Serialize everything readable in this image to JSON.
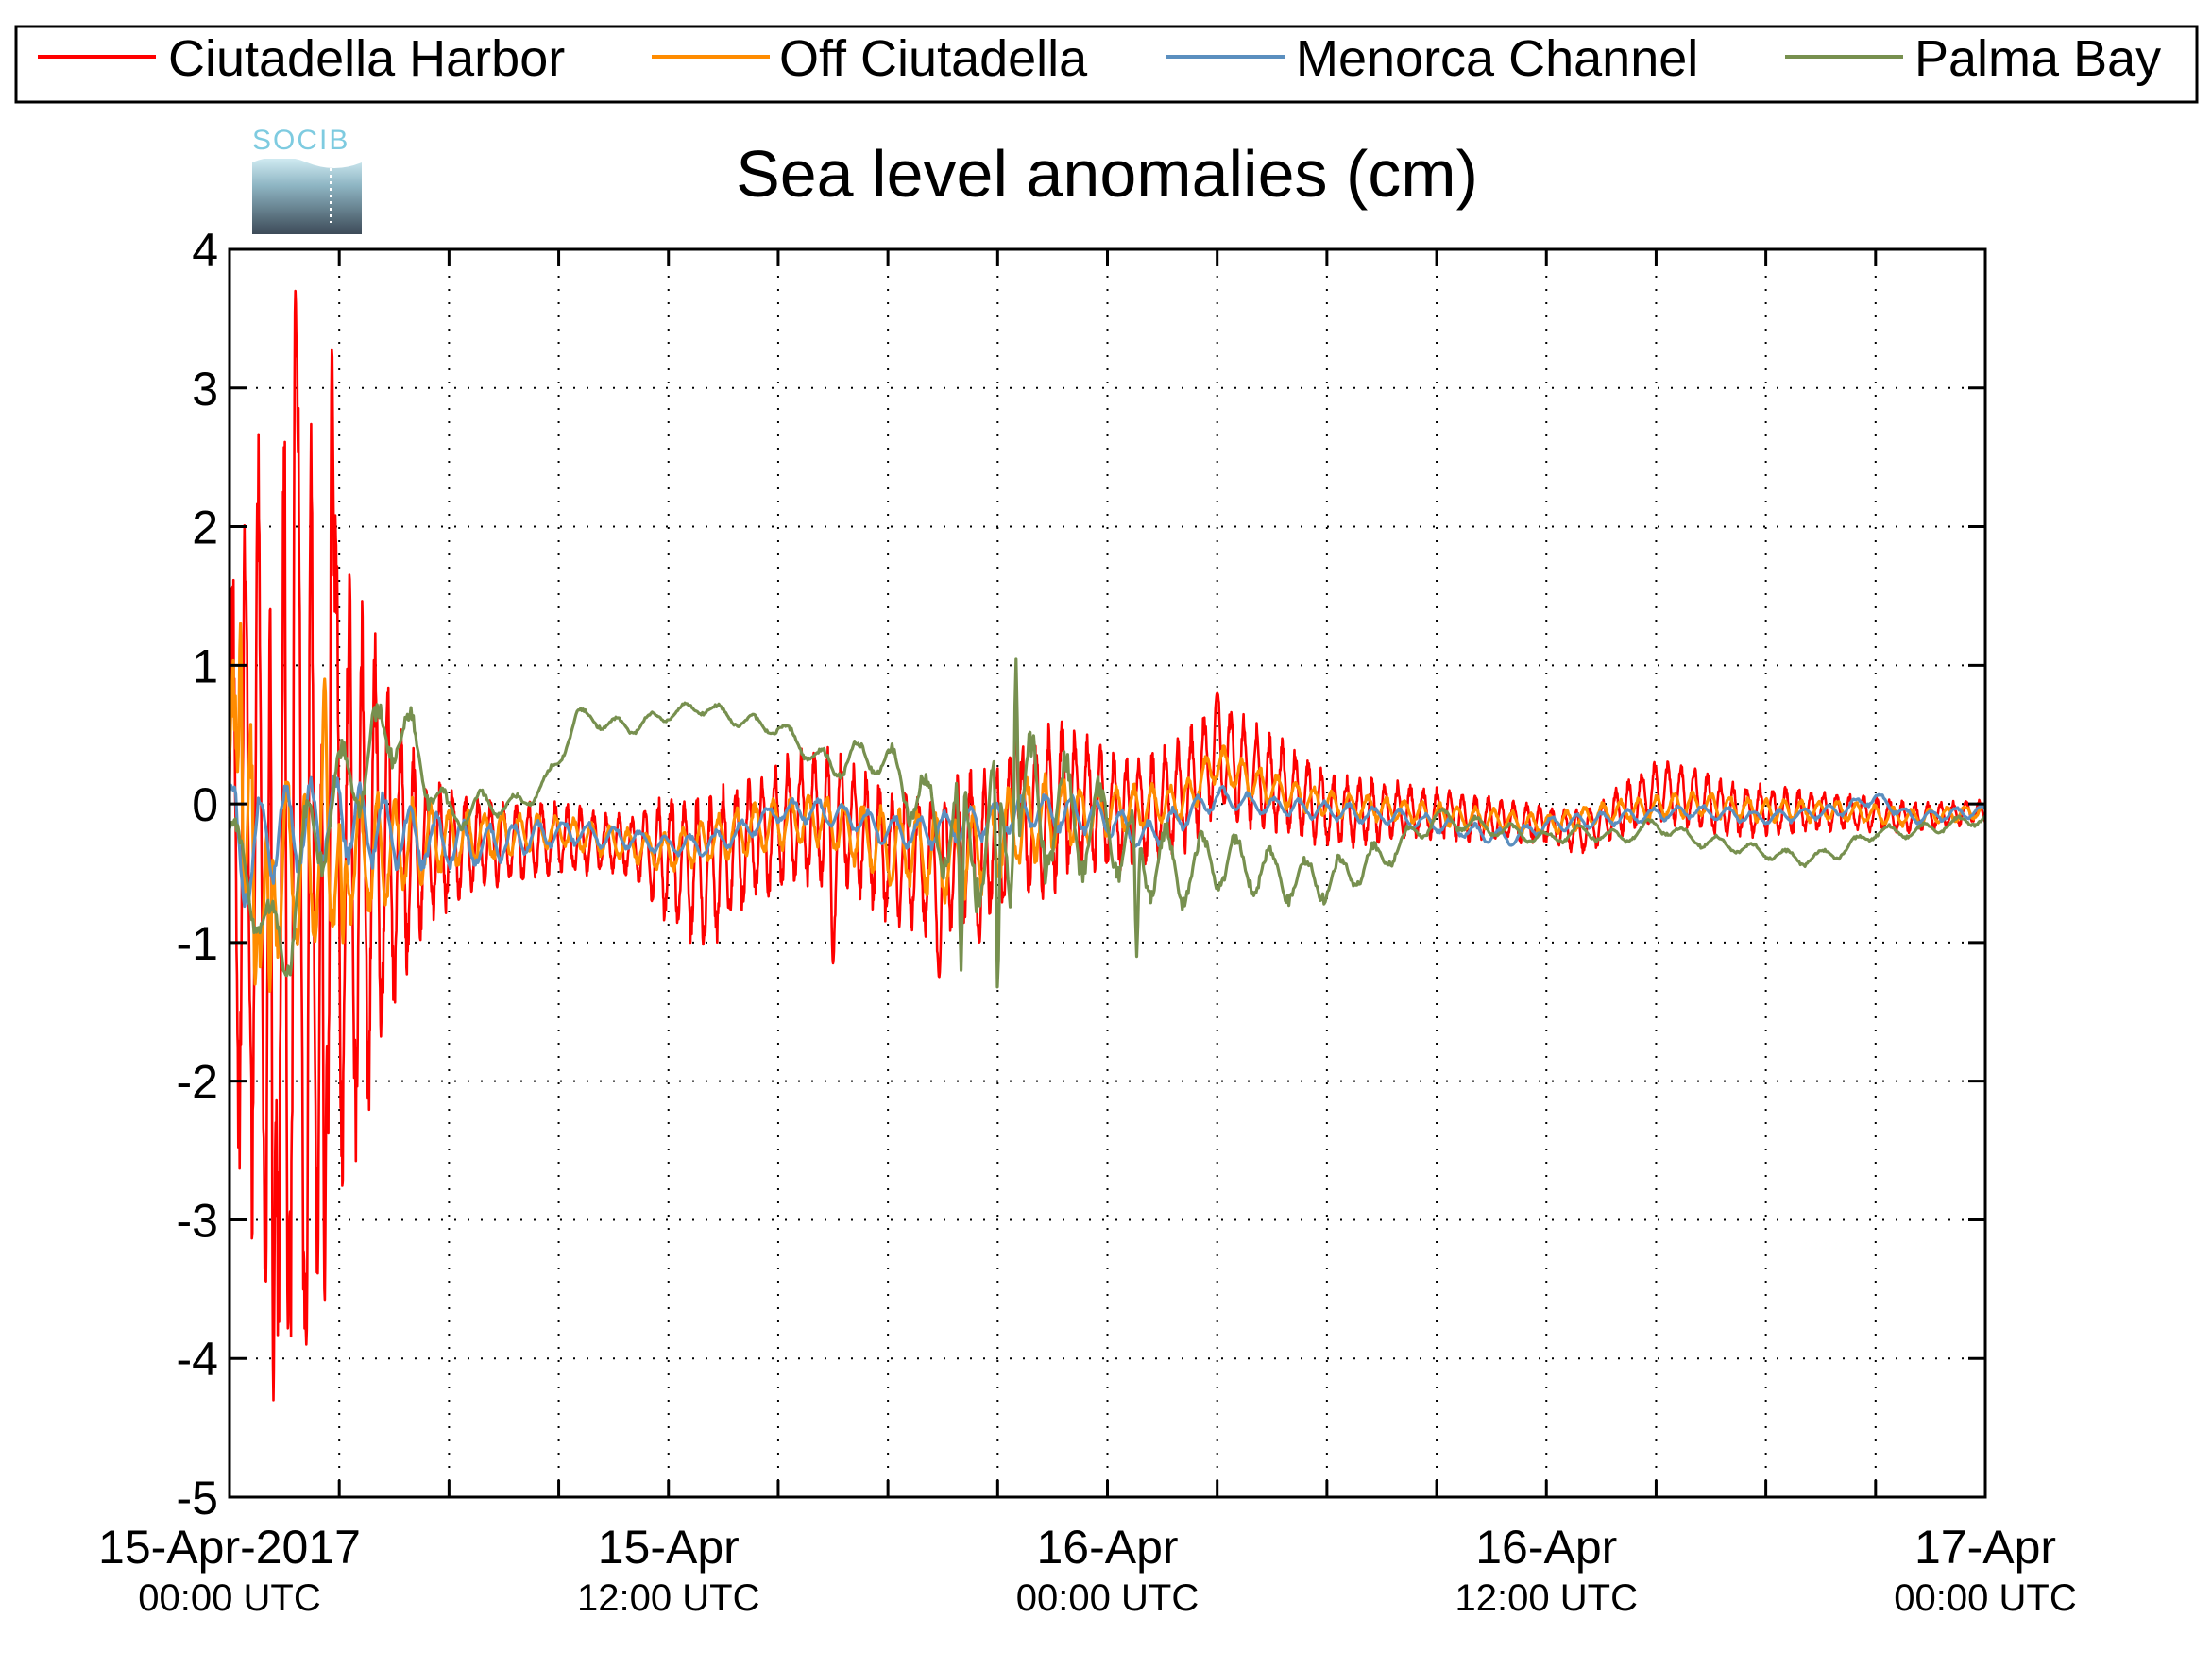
{
  "chart_data": {
    "type": "line",
    "title": "Sea level anomalies (cm)",
    "logo_text": "SOCIB",
    "xlabel": "",
    "ylabel": "",
    "x_unit": "hours since 15-Apr-2017 00:00 UTC",
    "xlim": [
      0,
      48
    ],
    "ylim": [
      -5,
      4
    ],
    "y_ticks": [
      4,
      3,
      2,
      1,
      0,
      -1,
      -2,
      -3,
      -4,
      -5
    ],
    "x_ticks_minor": [
      3,
      6,
      9,
      12,
      15,
      18,
      21,
      24,
      27,
      30,
      33,
      36,
      39,
      42,
      45,
      48
    ],
    "x_tick_labels": [
      {
        "x": 0,
        "line1": "15-Apr-2017",
        "line2": "00:00 UTC"
      },
      {
        "x": 12,
        "line1": "15-Apr",
        "line2": "12:00 UTC"
      },
      {
        "x": 24,
        "line1": "16-Apr",
        "line2": "00:00 UTC"
      },
      {
        "x": 36,
        "line1": "16-Apr",
        "line2": "12:00 UTC"
      },
      {
        "x": 48,
        "line1": "17-Apr",
        "line2": "00:00 UTC"
      }
    ],
    "grid": true,
    "legend_position": "top",
    "series": [
      {
        "name": "Ciutadella Harbor",
        "color": "#ff0000",
        "envelope": [
          [
            0,
            2.1
          ],
          [
            0.4,
            2.6
          ],
          [
            0.9,
            3.3
          ],
          [
            1.5,
            4.0
          ],
          [
            2.3,
            3.5
          ],
          [
            3.0,
            2.6
          ],
          [
            3.8,
            1.9
          ],
          [
            4.6,
            1.1
          ],
          [
            5.4,
            0.55
          ],
          [
            7,
            0.35
          ],
          [
            9,
            0.28
          ],
          [
            11,
            0.22
          ],
          [
            12,
            0.55
          ],
          [
            13,
            0.6
          ],
          [
            14.5,
            0.5
          ],
          [
            16,
            0.55
          ],
          [
            17,
            0.5
          ],
          [
            19,
            0.55
          ],
          [
            21,
            0.6
          ],
          [
            22.5,
            0.65
          ],
          [
            24,
            0.45
          ],
          [
            26,
            0.45
          ],
          [
            27,
            0.45
          ],
          [
            30,
            0.3
          ],
          [
            32,
            0.22
          ],
          [
            34,
            0.18
          ],
          [
            36,
            0.15
          ],
          [
            38,
            0.2
          ],
          [
            40,
            0.25
          ],
          [
            42,
            0.2
          ],
          [
            44,
            0.15
          ],
          [
            46,
            0.12
          ],
          [
            48,
            0.08
          ]
        ],
        "baseline": [
          [
            0,
            -0.3
          ],
          [
            3,
            -0.5
          ],
          [
            6,
            -0.3
          ],
          [
            9,
            -0.25
          ],
          [
            11,
            -0.3
          ],
          [
            12,
            -0.4
          ],
          [
            13,
            -0.5
          ],
          [
            14,
            -0.3
          ],
          [
            15,
            -0.15
          ],
          [
            16,
            -0.1
          ],
          [
            17,
            -0.15
          ],
          [
            18,
            -0.35
          ],
          [
            19,
            -0.45
          ],
          [
            20,
            -0.35
          ],
          [
            21,
            -0.25
          ],
          [
            22,
            -0.1
          ],
          [
            23,
            0.05
          ],
          [
            24,
            -0.05
          ],
          [
            25,
            -0.05
          ],
          [
            26,
            0.05
          ],
          [
            27,
            0.35
          ],
          [
            28,
            0.2
          ],
          [
            29,
            0.1
          ],
          [
            30,
            -0.05
          ],
          [
            32,
            -0.05
          ],
          [
            34,
            -0.1
          ],
          [
            36,
            -0.15
          ],
          [
            37,
            -0.2
          ],
          [
            38,
            -0.05
          ],
          [
            39,
            0.1
          ],
          [
            40,
            0.05
          ],
          [
            41,
            -0.05
          ],
          [
            42,
            -0.05
          ],
          [
            44,
            -0.05
          ],
          [
            46,
            -0.1
          ],
          [
            48,
            -0.05
          ]
        ],
        "period_h": 0.36,
        "samples": 4000,
        "peaks": [
          [
            1.8,
            3.7
          ],
          [
            2.8,
            3.3
          ],
          [
            1.2,
            -4.3
          ],
          [
            1.6,
            -3.8
          ],
          [
            2.1,
            -3.9
          ],
          [
            2.6,
            -3.6
          ],
          [
            27.0,
            0.8
          ],
          [
            16.5,
            -1.15
          ],
          [
            19.4,
            -1.25
          ],
          [
            20.5,
            -1.0
          ],
          [
            21.5,
            0.7
          ]
        ]
      },
      {
        "name": "Off Ciutadella",
        "color": "#ff8c00",
        "envelope": [
          [
            0,
            1.2
          ],
          [
            0.5,
            1.0
          ],
          [
            1.2,
            0.8
          ],
          [
            2.5,
            0.6
          ],
          [
            4,
            0.45
          ],
          [
            6,
            0.25
          ],
          [
            9,
            0.12
          ],
          [
            12,
            0.15
          ],
          [
            14,
            0.2
          ],
          [
            16,
            0.2
          ],
          [
            18,
            0.3
          ],
          [
            20,
            0.35
          ],
          [
            22,
            0.35
          ],
          [
            24,
            0.2
          ],
          [
            26,
            0.15
          ],
          [
            28,
            0.15
          ],
          [
            30,
            0.1
          ],
          [
            36,
            0.08
          ],
          [
            40,
            0.1
          ],
          [
            48,
            0.06
          ]
        ],
        "baseline": [
          [
            0,
            0.0
          ],
          [
            1,
            -0.5
          ],
          [
            3,
            -0.4
          ],
          [
            6,
            -0.25
          ],
          [
            9,
            -0.2
          ],
          [
            11,
            -0.3
          ],
          [
            12,
            -0.35
          ],
          [
            14,
            -0.2
          ],
          [
            16,
            -0.1
          ],
          [
            18,
            -0.3
          ],
          [
            20,
            -0.4
          ],
          [
            22,
            -0.1
          ],
          [
            24,
            -0.05
          ],
          [
            26,
            0.0
          ],
          [
            27,
            0.3
          ],
          [
            28,
            0.15
          ],
          [
            30,
            0.0
          ],
          [
            32,
            -0.05
          ],
          [
            34,
            -0.1
          ],
          [
            36,
            -0.15
          ],
          [
            38,
            -0.05
          ],
          [
            40,
            0.0
          ],
          [
            42,
            -0.05
          ],
          [
            44,
            -0.05
          ],
          [
            46,
            -0.1
          ],
          [
            48,
            -0.05
          ]
        ],
        "period_h": 0.5,
        "samples": 2400,
        "peaks": [
          [
            0.3,
            1.3
          ],
          [
            0.7,
            -1.3
          ],
          [
            1.1,
            -1.35
          ],
          [
            2.6,
            0.9
          ],
          [
            3.1,
            -1.0
          ]
        ]
      },
      {
        "name": "Menorca Channel",
        "color": "#5b8fbf",
        "envelope": [
          [
            0,
            0.4
          ],
          [
            2,
            0.4
          ],
          [
            4,
            0.3
          ],
          [
            6,
            0.2
          ],
          [
            9,
            0.1
          ],
          [
            12,
            0.08
          ],
          [
            16,
            0.1
          ],
          [
            20,
            0.15
          ],
          [
            24,
            0.15
          ],
          [
            28,
            0.08
          ],
          [
            36,
            0.06
          ],
          [
            48,
            0.05
          ]
        ],
        "baseline": [
          [
            0,
            0.0
          ],
          [
            0.3,
            -0.5
          ],
          [
            1,
            -0.2
          ],
          [
            3,
            -0.1
          ],
          [
            5,
            -0.25
          ],
          [
            7,
            -0.3
          ],
          [
            9,
            -0.2
          ],
          [
            11,
            -0.25
          ],
          [
            12,
            -0.3
          ],
          [
            13,
            -0.3
          ],
          [
            14,
            -0.2
          ],
          [
            15,
            -0.05
          ],
          [
            16,
            -0.05
          ],
          [
            17,
            -0.1
          ],
          [
            18,
            -0.2
          ],
          [
            19,
            -0.2
          ],
          [
            20,
            -0.15
          ],
          [
            22,
            -0.05
          ],
          [
            24,
            -0.1
          ],
          [
            25,
            -0.25
          ],
          [
            26,
            -0.1
          ],
          [
            27,
            0.05
          ],
          [
            28,
            0.0
          ],
          [
            30,
            -0.05
          ],
          [
            32,
            -0.1
          ],
          [
            34,
            -0.2
          ],
          [
            35,
            -0.25
          ],
          [
            36,
            -0.15
          ],
          [
            38,
            -0.1
          ],
          [
            40,
            -0.05
          ],
          [
            42,
            -0.1
          ],
          [
            44,
            -0.05
          ],
          [
            45,
            0.05
          ],
          [
            46,
            -0.1
          ],
          [
            48,
            -0.05
          ]
        ],
        "period_h": 0.7,
        "samples": 1400,
        "peaks": []
      },
      {
        "name": "Palma Bay",
        "color": "#77904f",
        "envelope": [
          [
            0,
            0.2
          ],
          [
            2,
            0.4
          ],
          [
            3,
            0.4
          ],
          [
            4.5,
            0.35
          ],
          [
            6,
            0.15
          ],
          [
            8,
            0.08
          ],
          [
            9,
            0.06
          ],
          [
            14,
            0.06
          ],
          [
            16,
            0.1
          ],
          [
            18,
            0.15
          ],
          [
            19,
            0.35
          ],
          [
            20,
            0.55
          ],
          [
            21,
            0.7
          ],
          [
            22,
            0.65
          ],
          [
            23,
            0.5
          ],
          [
            24,
            0.35
          ],
          [
            25,
            0.35
          ],
          [
            26,
            0.3
          ],
          [
            27,
            0.25
          ],
          [
            29,
            0.2
          ],
          [
            31,
            0.15
          ],
          [
            33,
            0.08
          ],
          [
            36,
            0.06
          ],
          [
            40,
            0.06
          ],
          [
            48,
            0.05
          ]
        ],
        "baseline": [
          [
            0,
            -0.2
          ],
          [
            1,
            -0.9
          ],
          [
            1.5,
            -1.1
          ],
          [
            2,
            -0.4
          ],
          [
            3,
            0.1
          ],
          [
            4,
            0.4
          ],
          [
            4.5,
            0.6
          ],
          [
            5,
            0.4
          ],
          [
            6,
            -0.1
          ],
          [
            7,
            0.0
          ],
          [
            8,
            0.0
          ],
          [
            8.6,
            0.15
          ],
          [
            9,
            0.3
          ],
          [
            9.5,
            0.65
          ],
          [
            10,
            0.6
          ],
          [
            11,
            0.55
          ],
          [
            12,
            0.65
          ],
          [
            13,
            0.7
          ],
          [
            14,
            0.6
          ],
          [
            15,
            0.55
          ],
          [
            16,
            0.35
          ],
          [
            16.5,
            0.25
          ],
          [
            17,
            0.35
          ],
          [
            18,
            0.3
          ],
          [
            19,
            -0.05
          ],
          [
            20,
            -0.2
          ],
          [
            21,
            -0.2
          ],
          [
            22,
            0.0
          ],
          [
            23,
            -0.1
          ],
          [
            24,
            -0.2
          ],
          [
            25,
            -0.35
          ],
          [
            26,
            -0.5
          ],
          [
            27,
            -0.4
          ],
          [
            28,
            -0.45
          ],
          [
            29,
            -0.55
          ],
          [
            30,
            -0.55
          ],
          [
            31,
            -0.45
          ],
          [
            32,
            -0.3
          ],
          [
            33,
            -0.1
          ],
          [
            34,
            -0.15
          ],
          [
            35,
            -0.2
          ],
          [
            36,
            -0.25
          ],
          [
            37,
            -0.2
          ],
          [
            38,
            -0.25
          ],
          [
            39,
            -0.15
          ],
          [
            40,
            -0.25
          ],
          [
            41,
            -0.3
          ],
          [
            42,
            -0.35
          ],
          [
            43,
            -0.4
          ],
          [
            44,
            -0.35
          ],
          [
            45,
            -0.2
          ],
          [
            46,
            -0.2
          ],
          [
            47,
            -0.15
          ],
          [
            48,
            -0.1
          ]
        ],
        "period_h": 0.95,
        "samples": 1500,
        "peaks": [
          [
            21.5,
            1.05
          ],
          [
            21.0,
            -1.35
          ],
          [
            20.0,
            -1.2
          ],
          [
            24.8,
            -1.1
          ]
        ]
      }
    ]
  }
}
